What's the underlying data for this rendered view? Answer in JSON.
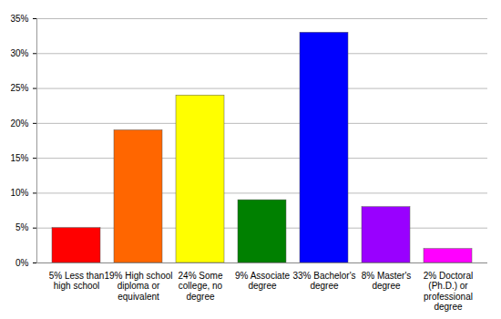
{
  "chart_data": {
    "type": "bar",
    "categories": [
      "5% Less than high school",
      "19% High school diploma or equivalent",
      "24% Some college, no degree",
      "9% Associate degree",
      "33% Bachelor's degree",
      "8% Master's degree",
      "2% Doctoral (Ph.D.) or professional degree"
    ],
    "values": [
      5,
      19,
      24,
      9,
      33,
      8,
      2
    ],
    "colors": [
      "#ff0000",
      "#ff6600",
      "#ffff00",
      "#008000",
      "#0000ff",
      "#9900ff",
      "#ff00ff"
    ],
    "ylim": [
      0,
      35
    ],
    "yticks": [
      {
        "value": 0,
        "label": "0%"
      },
      {
        "value": 5,
        "label": "5%"
      },
      {
        "value": 10,
        "label": "10%"
      },
      {
        "value": 15,
        "label": "15%"
      },
      {
        "value": 20,
        "label": "20%"
      },
      {
        "value": 25,
        "label": "25%"
      },
      {
        "value": 30,
        "label": "30%"
      },
      {
        "value": 35,
        "label": "35%"
      }
    ],
    "grid": true
  }
}
